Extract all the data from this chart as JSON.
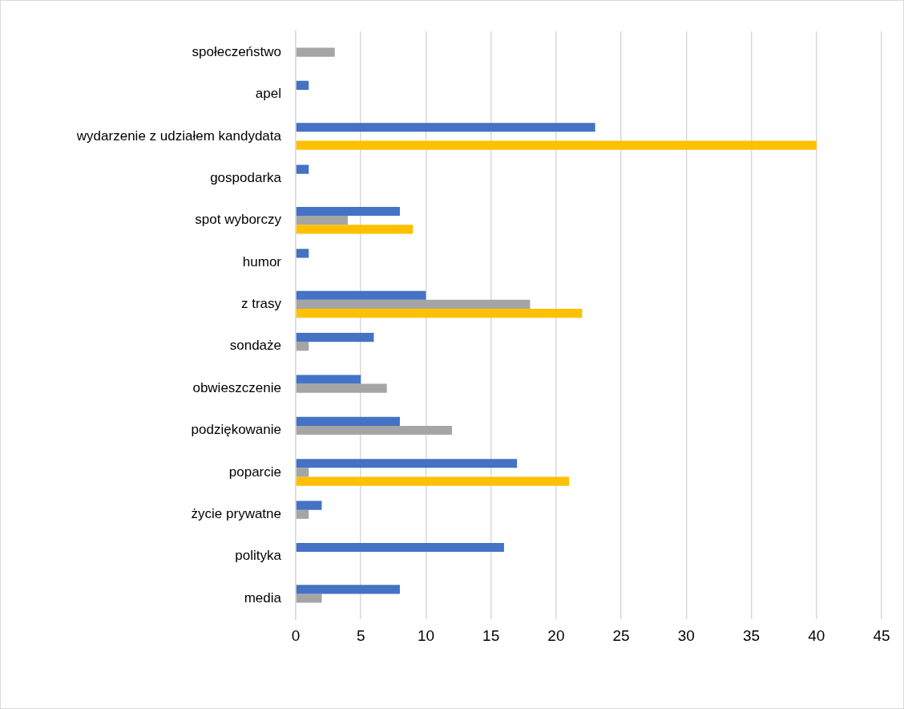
{
  "chart_data": {
    "type": "bar",
    "orientation": "horizontal",
    "categories": [
      "społeczeństwo",
      "apel",
      "wydarzenie z udziałem kandydata",
      "gospodarka",
      "spot wyborczy",
      "humor",
      "z trasy",
      "sondaże",
      "obwieszczenie",
      "podziękowanie",
      "poparcie",
      "życie prywatne",
      "polityka",
      "media"
    ],
    "series": [
      {
        "color": "#4472c4",
        "values": [
          null,
          1,
          23,
          1,
          8,
          1,
          10,
          6,
          5,
          8,
          17,
          2,
          16,
          8
        ]
      },
      {
        "color": "#a5a5a5",
        "values": [
          3,
          null,
          null,
          null,
          4,
          null,
          18,
          1,
          7,
          12,
          1,
          1,
          null,
          2
        ]
      },
      {
        "color": "#ffc000",
        "values": [
          null,
          null,
          40,
          null,
          9,
          null,
          22,
          null,
          null,
          null,
          21,
          null,
          null,
          null
        ]
      }
    ],
    "xlim": [
      0,
      45
    ],
    "xticks": [
      0,
      5,
      10,
      15,
      20,
      25,
      30,
      35,
      40,
      45
    ],
    "grid": "x",
    "legend": false
  }
}
